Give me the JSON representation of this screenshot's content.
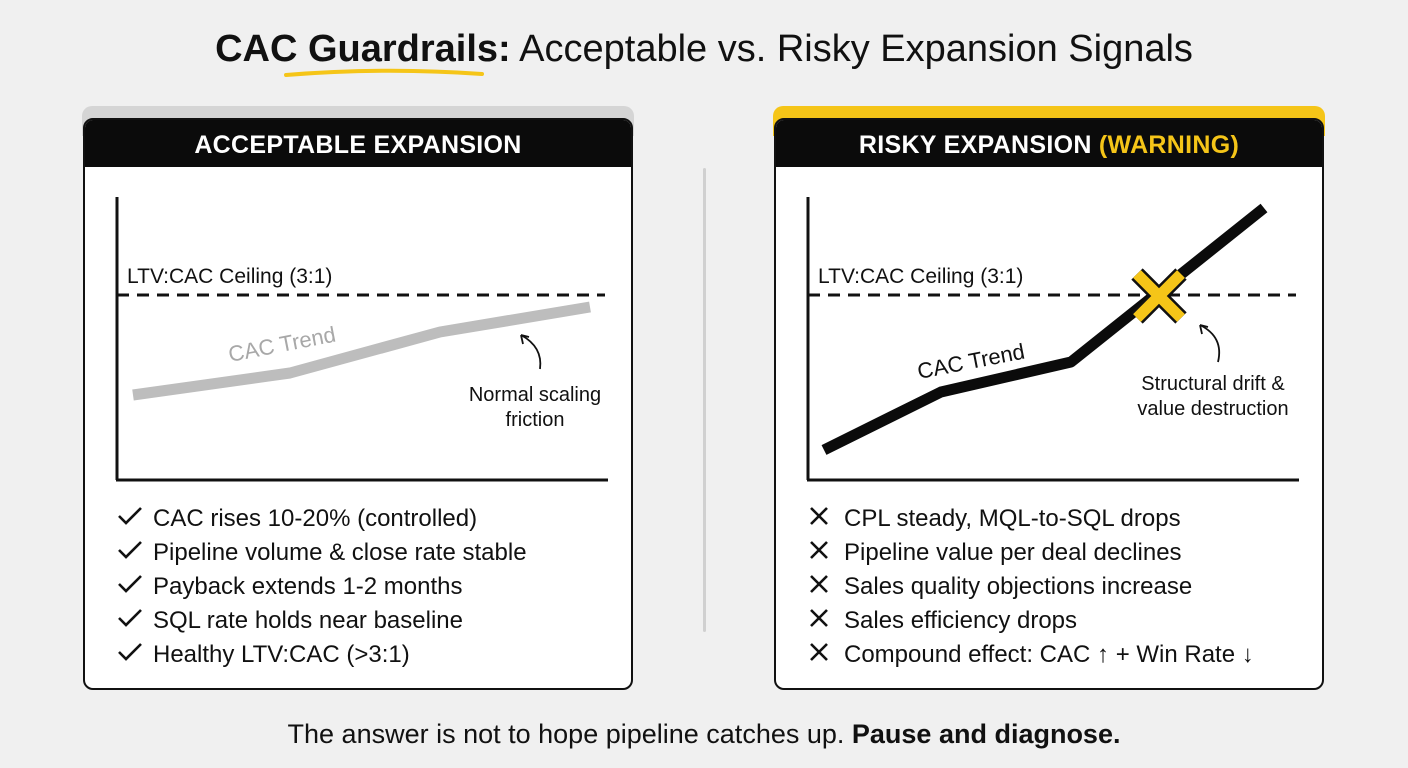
{
  "title": {
    "part1": "CAC Guardrails:",
    "part2": " Acceptable vs. Risky Expansion Signals"
  },
  "colors": {
    "accent": "#f5c518",
    "ink": "#111111",
    "muted_trend": "#bdbdbd",
    "background": "#f0f0f0"
  },
  "left": {
    "header": "ACCEPTABLE EXPANSION",
    "ceiling_label": "LTV:CAC Ceiling (3:1)",
    "trend_label": "CAC Trend",
    "annotation_line1": "Normal scaling",
    "annotation_line2": "friction",
    "icon": "check-icon",
    "items": [
      "CAC rises 10-20% (controlled)",
      "Pipeline volume & close rate stable",
      "Payback extends 1-2 months",
      "SQL rate holds near baseline",
      "Healthy LTV:CAC (>3:1)"
    ]
  },
  "right": {
    "header_main": "RISKY EXPANSION ",
    "header_warning": "(WARNING)",
    "ceiling_label": "LTV:CAC Ceiling (3:1)",
    "trend_label": "CAC Trend",
    "annotation_line1": "Structural drift &",
    "annotation_line2": "value destruction",
    "icon": "x-icon",
    "items": [
      "CPL steady, MQL-to-SQL drops",
      "Pipeline value per deal declines",
      "Sales quality objections increase",
      "Sales efficiency drops",
      "Compound effect: CAC ↑ + Win Rate ↓"
    ]
  },
  "footer": {
    "normal": "The answer is not to hope pipeline catches up. ",
    "bold": "Pause and diagnose."
  }
}
